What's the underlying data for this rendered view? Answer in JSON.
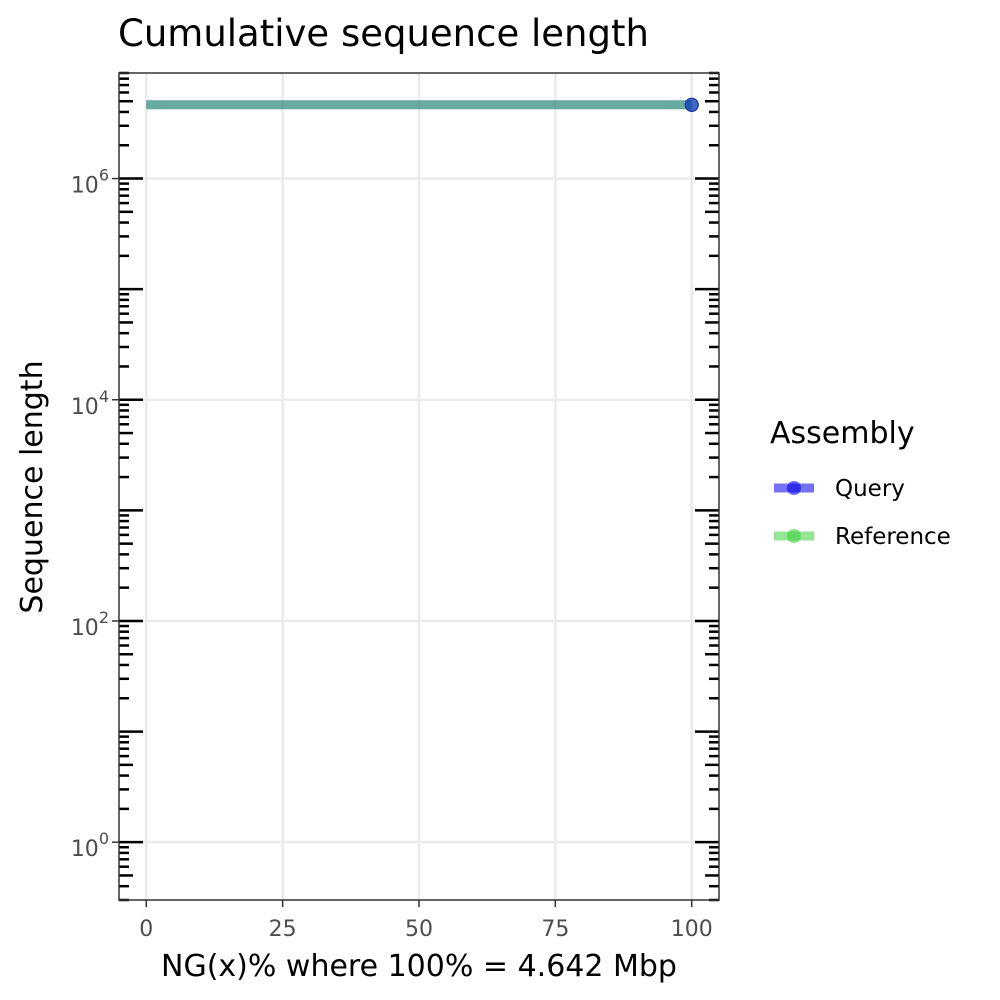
{
  "chart_data": {
    "type": "line",
    "title": "Cumulative sequence length",
    "xlabel": "NG(x)% where 100% = 4.642 Mbp",
    "ylabel": "Sequence length",
    "xlim": [
      -5,
      105
    ],
    "ylim": [
      0.3,
      9000000
    ],
    "y_scale": "log10",
    "x_ticks": [
      0,
      25,
      50,
      75,
      100
    ],
    "x_tick_labels": [
      "0",
      "25",
      "50",
      "75",
      "100"
    ],
    "y_ticks": [
      1,
      100,
      10000,
      1000000
    ],
    "y_tick_labels": [
      {
        "base": "10",
        "exp": "0"
      },
      {
        "base": "10",
        "exp": "2"
      },
      {
        "base": "10",
        "exp": "4"
      },
      {
        "base": "10",
        "exp": "6"
      }
    ],
    "grid": true,
    "legend_position": "right",
    "legend_title": "Assembly",
    "series": [
      {
        "name": "Query",
        "color": "#0000e6",
        "x": [
          0,
          100
        ],
        "y": [
          4642000,
          4642000
        ],
        "point_x": 100,
        "point_y": 4642000
      },
      {
        "name": "Reference",
        "color": "#3cd13c",
        "x": [
          0,
          100
        ],
        "y": [
          4642000,
          4642000
        ],
        "point_x": 100,
        "point_y": 4642000
      }
    ]
  }
}
